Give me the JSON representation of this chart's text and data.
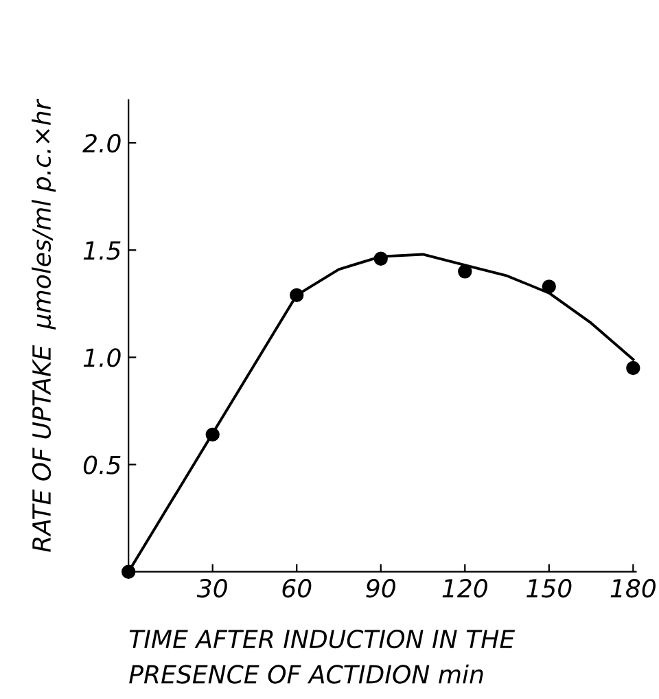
{
  "chart_data": {
    "type": "scatter",
    "xlabel": "TIME AFTER INDUCTION IN THE\nPRESENCE OF ACTIDION min",
    "ylabel": "RATE OF UPTAKE  μmoles/ml p.c.×hr",
    "series": [
      {
        "marker": "circle",
        "color": "#000000",
        "x": [
          0,
          30,
          60,
          90,
          120,
          150,
          180
        ],
        "values": [
          0,
          0.64,
          1.29,
          1.46,
          1.4,
          1.33,
          0.95
        ]
      },
      {
        "type": "line",
        "marker": "none",
        "color": "#000000",
        "x": [
          0,
          30,
          60,
          75,
          90,
          105,
          120,
          135,
          150,
          165,
          180
        ],
        "values": [
          0,
          0.645,
          1.29,
          1.41,
          1.47,
          1.48,
          1.43,
          1.38,
          1.3,
          1.16,
          0.99
        ]
      }
    ],
    "xlim": [
      0,
      181
    ],
    "ylim": [
      0,
      2.2
    ],
    "xticks": [
      30,
      60,
      90,
      120,
      150,
      180
    ],
    "yticks": [
      0.5,
      {
        "value": 1.0,
        "label": "1.0"
      },
      1.5,
      {
        "value": 2.0,
        "label": "2.0"
      }
    ],
    "grid": false,
    "legend": false
  }
}
